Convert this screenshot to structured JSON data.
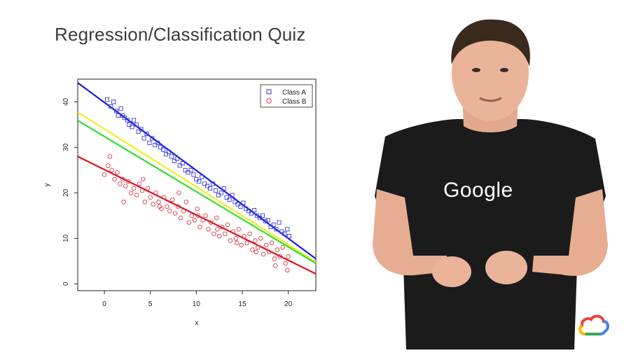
{
  "slide": {
    "title": "Regression/Classification Quiz",
    "shirt_text": "Google"
  },
  "colors": {
    "class_a": "#3a3ad6",
    "class_b": "#d63a4a",
    "line_blue": "#1c1ce0",
    "line_yellow": "#f0f020",
    "line_green": "#30e030",
    "line_red": "#e01020"
  },
  "icons": {
    "cloud": "google-cloud-icon"
  },
  "chart_data": {
    "type": "scatter",
    "xlabel": "x",
    "ylabel": "y",
    "xlim": [
      -2.9,
      23
    ],
    "ylim": [
      -1.5,
      45
    ],
    "xticks": [
      0,
      5,
      10,
      15,
      20
    ],
    "yticks": [
      0,
      10,
      20,
      30,
      40
    ],
    "grid": false,
    "legend_position": "top-right",
    "series": [
      {
        "name": "Class A",
        "marker": "square",
        "x": [
          0.3,
          0.7,
          1.0,
          1.3,
          1.5,
          1.8,
          2.0,
          2.2,
          2.5,
          2.7,
          3.0,
          3.2,
          3.5,
          3.7,
          4.0,
          4.3,
          4.6,
          4.9,
          5.2,
          5.5,
          5.8,
          6.1,
          6.4,
          6.7,
          7.0,
          7.3,
          7.6,
          7.9,
          8.2,
          8.5,
          8.8,
          9.1,
          9.4,
          9.7,
          10.0,
          10.3,
          10.6,
          10.9,
          11.2,
          11.5,
          11.8,
          12.1,
          12.4,
          12.7,
          13.0,
          13.3,
          13.6,
          13.9,
          14.2,
          14.5,
          14.8,
          15.1,
          15.4,
          15.7,
          16.0,
          16.3,
          16.6,
          16.9,
          17.2,
          17.5,
          17.8,
          18.1,
          18.4,
          18.7,
          19.0,
          19.3,
          19.6,
          19.9,
          20.1
        ],
        "y": [
          40.5,
          39,
          40,
          38,
          37,
          38.5,
          37,
          36.5,
          36,
          35,
          34.5,
          36,
          35,
          33.5,
          34,
          32,
          33,
          31,
          32,
          30.5,
          31,
          30,
          29.5,
          28.5,
          29,
          28,
          27,
          27.5,
          26,
          26.5,
          25,
          24.5,
          25,
          24,
          23,
          22.5,
          23.5,
          22,
          21.5,
          21,
          22,
          20.5,
          19.5,
          20,
          21,
          19,
          18.5,
          19.5,
          18,
          17.5,
          17,
          17.8,
          16.5,
          16,
          15.5,
          16.2,
          15,
          14.5,
          15,
          13.8,
          14,
          12.5,
          13,
          12,
          13.5,
          11.5,
          11,
          12,
          10.5
        ]
      },
      {
        "name": "Class B",
        "marker": "circle",
        "x": [
          0.0,
          0.4,
          0.8,
          1.1,
          1.4,
          1.7,
          2.0,
          2.3,
          2.6,
          2.9,
          3.2,
          3.5,
          3.8,
          4.1,
          4.4,
          4.7,
          5.0,
          5.3,
          5.6,
          5.9,
          6.2,
          6.5,
          6.8,
          7.1,
          7.4,
          7.7,
          8.0,
          8.3,
          8.6,
          8.9,
          9.2,
          9.5,
          9.8,
          10.1,
          10.4,
          10.7,
          11.0,
          11.3,
          11.6,
          11.9,
          12.2,
          12.5,
          12.8,
          13.1,
          13.4,
          13.7,
          14.0,
          14.3,
          14.6,
          14.9,
          15.2,
          15.5,
          15.8,
          16.1,
          16.4,
          16.7,
          17.0,
          17.3,
          17.6,
          17.9,
          18.2,
          18.5,
          18.8,
          19.1,
          19.4,
          19.7,
          20.0,
          0.6,
          2.1,
          4.2,
          6.0,
          8.1,
          10.2,
          12.3,
          14.4,
          16.5,
          18.6,
          19.9
        ],
        "y": [
          24,
          26,
          25,
          23,
          24.5,
          22,
          23,
          21.5,
          22.5,
          20,
          21,
          19.5,
          22,
          20.5,
          18,
          21,
          19,
          17.5,
          20,
          18,
          16.5,
          19,
          17,
          16,
          18.5,
          15.5,
          17,
          14.5,
          16,
          18,
          13.5,
          15,
          14,
          16.5,
          12.5,
          14,
          15,
          12,
          13.5,
          11,
          14.5,
          10.5,
          12.5,
          11,
          13,
          9.5,
          11.5,
          10,
          12,
          8.5,
          10.5,
          9,
          11,
          7.5,
          9.5,
          8,
          10,
          6.5,
          8.5,
          7,
          9,
          5.5,
          7.5,
          6,
          8,
          4.5,
          6,
          28,
          18,
          23,
          17,
          20,
          15,
          12,
          9,
          7,
          4,
          3
        ]
      }
    ],
    "lines": [
      {
        "color": "line_blue",
        "x1": -2.9,
        "y1": 44.2,
        "x2": 23,
        "y2": 5.5
      },
      {
        "color": "line_yellow",
        "x1": -2.9,
        "y1": 37.7,
        "x2": 23,
        "y2": 4.8
      },
      {
        "color": "line_green",
        "x1": -2.9,
        "y1": 35.9,
        "x2": 23,
        "y2": 4.5
      },
      {
        "color": "line_red",
        "x1": -2.9,
        "y1": 28.0,
        "x2": 23,
        "y2": 2.2
      }
    ]
  }
}
